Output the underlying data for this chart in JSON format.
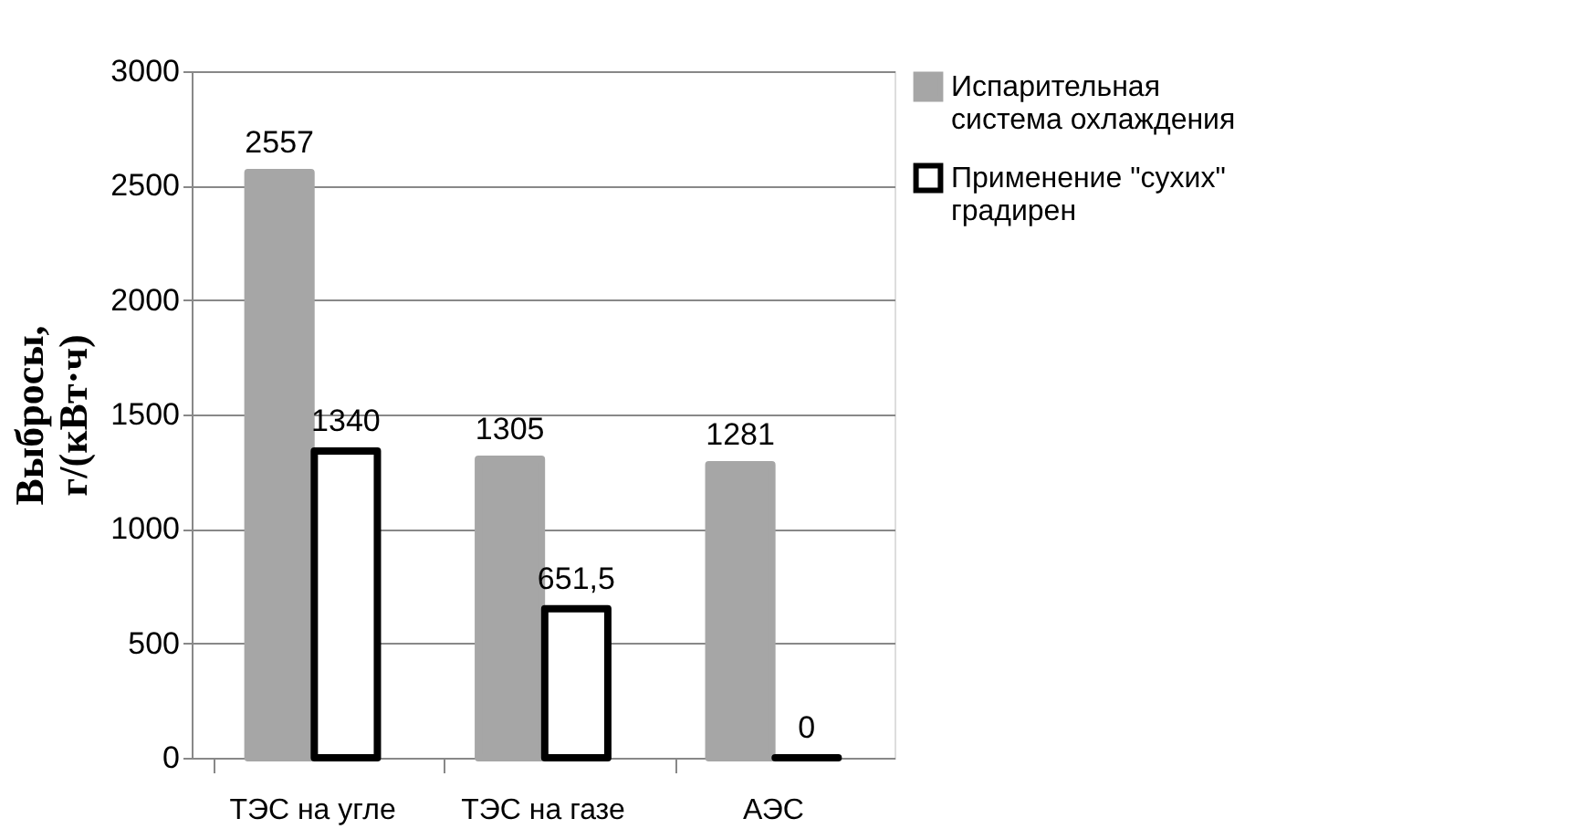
{
  "chart_data": {
    "type": "bar",
    "ylabel": "Выбросы, г/(кВт·ч)",
    "categories": [
      "ТЭС на угле",
      "ТЭС на газе",
      "АЭС"
    ],
    "series": [
      {
        "name": "Испарительная система охлаждения",
        "color": "#a6a6a6",
        "values": [
          2557,
          1305,
          1281
        ],
        "value_labels": [
          "2557",
          "1305",
          "1281"
        ]
      },
      {
        "name": "Применение \"сухих\" градирен",
        "color": "#000000",
        "values": [
          1340,
          651.5,
          0
        ],
        "value_labels": [
          "1340",
          "651,5",
          "0"
        ]
      }
    ],
    "ylim": [
      0,
      3000
    ],
    "yticks": [
      0,
      500,
      1000,
      1500,
      2000,
      2500,
      3000
    ],
    "grid": "y",
    "legend": "right"
  }
}
